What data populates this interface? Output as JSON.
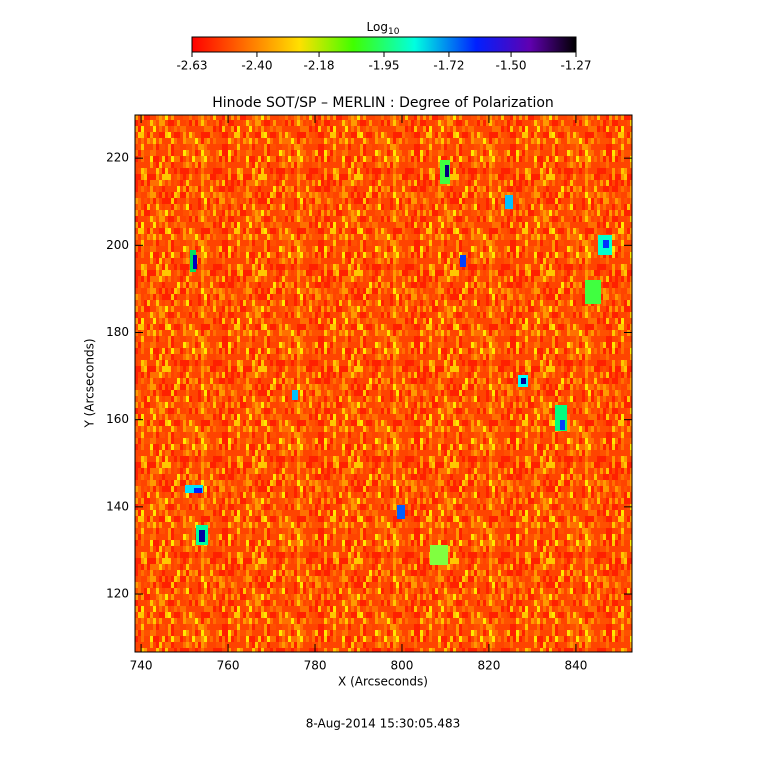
{
  "chart_data": {
    "type": "image",
    "title": "Hinode SOT/SP – MERLIN : Degree of Polarization",
    "xlabel": "X (Arcseconds)",
    "ylabel": "Y (Arcseconds)",
    "footer": "8-Aug-2014 15:30:05.483",
    "colorbar": {
      "label": "Log",
      "label_sub": "10",
      "lim": [
        -2.63,
        -1.27
      ],
      "ticks": [
        -2.63,
        {
          "value": -2.4,
          "label": "-2.40"
        },
        -2.18,
        -1.95,
        -1.72,
        {
          "value": -1.5,
          "label": "-1.50"
        },
        -1.27
      ]
    },
    "xlim": [
      738.6,
      852.9
    ],
    "xticks": [
      740,
      760,
      780,
      800,
      820,
      840
    ],
    "ylim": [
      106.7,
      229.9
    ],
    "yticks": [
      120,
      140,
      160,
      180,
      200,
      220
    ]
  }
}
